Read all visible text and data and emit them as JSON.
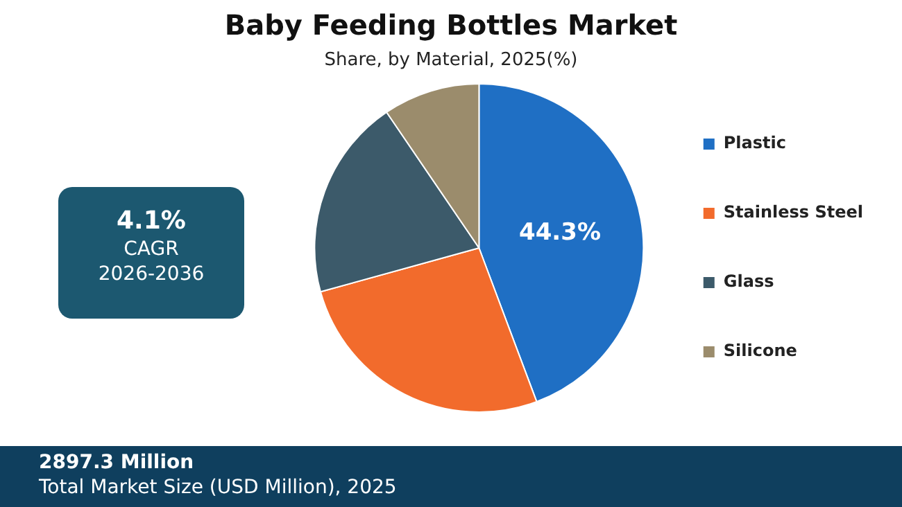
{
  "chart_data": {
    "type": "pie",
    "title": "Baby Feeding Bottles Market",
    "subtitle": "Share, by Material, 2025(%)",
    "categories": [
      "Plastic",
      "Stainless Steel",
      "Glass",
      "Silicone"
    ],
    "values": [
      44.3,
      26.4,
      19.8,
      9.5
    ],
    "colors": [
      "#1f6fc4",
      "#f26b2c",
      "#3c5a6a",
      "#9b8c6c"
    ],
    "value_labels": [
      "44.3%",
      null,
      null,
      null
    ],
    "legend": "right",
    "annotations": [
      "4.1%",
      "CAGR",
      "2026-2036",
      "2897.3 Million",
      "Total Market Size (USD Million), 2025"
    ]
  }
}
